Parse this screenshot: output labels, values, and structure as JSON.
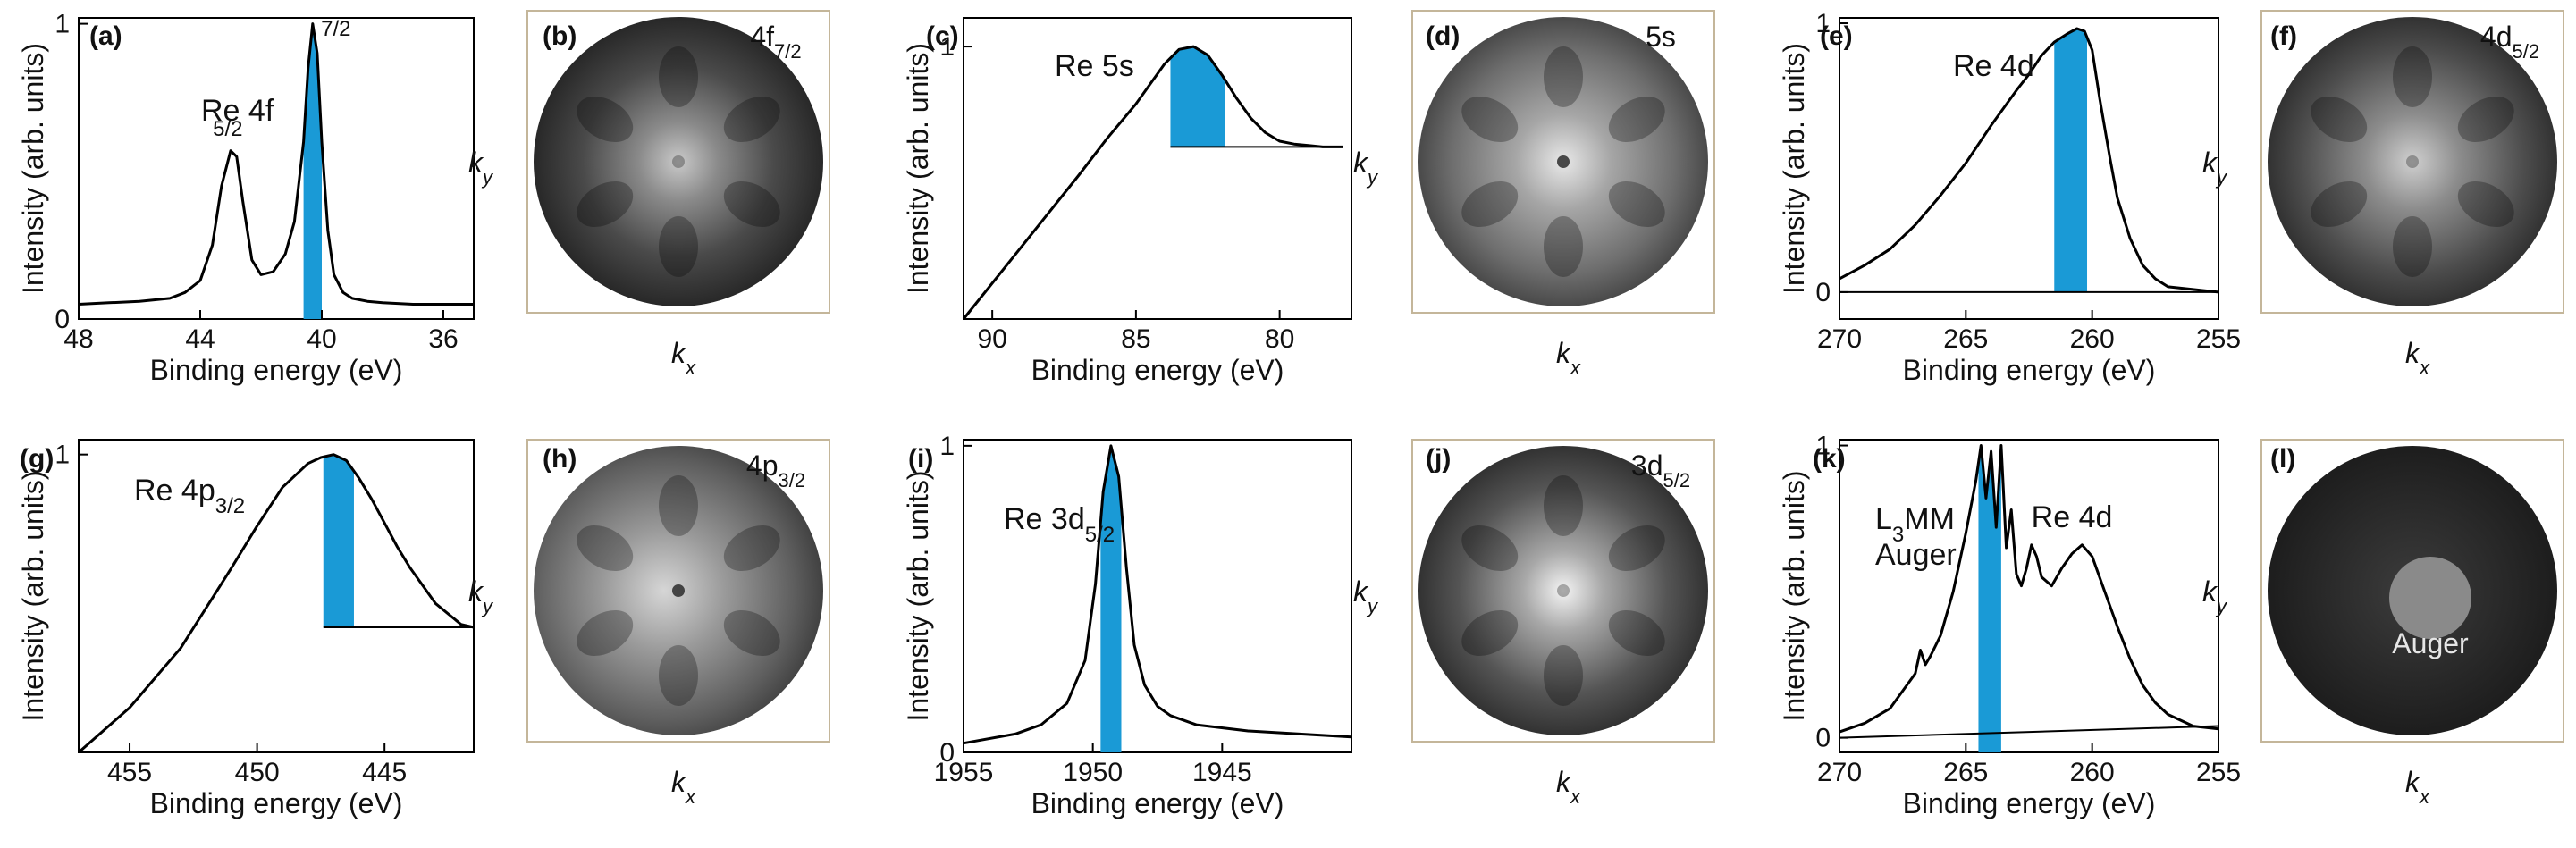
{
  "figure": {
    "common_xlabel": "Binding energy (eV)",
    "common_ylabel": "Intensity (arb. units)",
    "kx_label": "k",
    "kx_sub": "x",
    "ky_label": "k",
    "ky_sub": "y",
    "highlight_color": "#1a9ad6",
    "line_color": "#000000"
  },
  "chart_data": [
    {
      "panel": "(a)",
      "type": "line",
      "annotation": "Re 4f",
      "peak_labels": [
        {
          "text": "5/2",
          "x": 42.8
        },
        {
          "text": "7/2",
          "x": 40.3
        }
      ],
      "xlabel": "Binding energy (eV)",
      "ylabel": "Intensity (arb. units)",
      "xlim": [
        48,
        35
      ],
      "xticks": [
        48,
        44,
        40,
        36
      ],
      "ylim": [
        0,
        1.02
      ],
      "yticks": [
        0,
        1
      ],
      "x": [
        48,
        47,
        46,
        45,
        44.5,
        44,
        43.6,
        43.3,
        43.0,
        42.8,
        42.6,
        42.3,
        42.0,
        41.6,
        41.2,
        40.9,
        40.6,
        40.45,
        40.3,
        40.15,
        40.0,
        39.8,
        39.6,
        39.3,
        39.0,
        38.5,
        38,
        37,
        36,
        35
      ],
      "y": [
        0.05,
        0.055,
        0.06,
        0.07,
        0.09,
        0.13,
        0.25,
        0.45,
        0.57,
        0.55,
        0.4,
        0.2,
        0.15,
        0.16,
        0.22,
        0.33,
        0.6,
        0.85,
        1.0,
        0.9,
        0.6,
        0.3,
        0.15,
        0.09,
        0.07,
        0.06,
        0.055,
        0.05,
        0.05,
        0.05
      ],
      "highlight": [
        40.6,
        40.0
      ]
    },
    {
      "panel": "(c)",
      "type": "line",
      "annotation": "Re 5s",
      "xlabel": "Binding energy (eV)",
      "ylabel": "Intensity (arb. units)",
      "xlim": [
        91,
        77.5
      ],
      "xticks": [
        90,
        85,
        80
      ],
      "ylim": [
        0.05,
        1.1
      ],
      "yticks": [
        1
      ],
      "x": [
        91,
        89,
        87,
        86,
        85,
        84.5,
        84,
        83.5,
        83,
        82.5,
        82,
        81.5,
        81,
        80.5,
        80,
        79.5,
        79,
        78.5,
        78,
        77.8
      ],
      "y": [
        0.05,
        0.3,
        0.55,
        0.68,
        0.8,
        0.87,
        0.94,
        0.99,
        1.0,
        0.97,
        0.9,
        0.82,
        0.75,
        0.7,
        0.67,
        0.66,
        0.655,
        0.65,
        0.65,
        0.65
      ],
      "highlight": [
        83.8,
        81.9
      ],
      "highlight_base": 0.65
    },
    {
      "panel": "(e)",
      "type": "line",
      "annotation": "Re 4d",
      "xlabel": "Binding energy (eV)",
      "ylabel": "Intensity (arb. units)",
      "xlim": [
        270,
        255
      ],
      "xticks": [
        270,
        265,
        260,
        255
      ],
      "ylim": [
        -0.1,
        1.02
      ],
      "yticks": [
        0,
        1
      ],
      "x": [
        270,
        269,
        268,
        267,
        266,
        265,
        264,
        263,
        262.5,
        262,
        261.5,
        261,
        260.6,
        260.3,
        260,
        259.7,
        259.3,
        259,
        258.5,
        258,
        257.5,
        257,
        256,
        255
      ],
      "y": [
        0.05,
        0.1,
        0.16,
        0.25,
        0.36,
        0.48,
        0.62,
        0.75,
        0.81,
        0.88,
        0.93,
        0.96,
        0.98,
        0.97,
        0.9,
        0.72,
        0.5,
        0.35,
        0.2,
        0.1,
        0.05,
        0.02,
        0.01,
        0.0
      ],
      "highlight": [
        261.5,
        260.2
      ],
      "baseline": 0
    },
    {
      "panel": "(g)",
      "type": "line",
      "annotation": "Re 4p",
      "annotation_sub": "3/2",
      "xlabel": "Binding energy (eV)",
      "ylabel": "Intensity (arb. units)",
      "xlim": [
        457,
        441.5
      ],
      "xticks": [
        455,
        450,
        445
      ],
      "ylim": [
        0,
        1.05
      ],
      "yticks": [
        1
      ],
      "x": [
        457,
        455,
        453,
        451,
        450,
        449,
        448,
        447.5,
        447,
        446.5,
        446,
        445.5,
        445,
        444.5,
        444,
        443,
        442,
        441.5
      ],
      "y": [
        0.0,
        0.15,
        0.35,
        0.62,
        0.76,
        0.89,
        0.97,
        0.99,
        1.0,
        0.98,
        0.92,
        0.85,
        0.77,
        0.69,
        0.62,
        0.5,
        0.43,
        0.42
      ],
      "highlight": [
        447.4,
        446.2
      ],
      "highlight_base": 0.42
    },
    {
      "panel": "(i)",
      "type": "line",
      "annotation": "Re 3d",
      "annotation_sub": "5/2",
      "xlabel": "Binding energy (eV)",
      "ylabel": "Intensity (arb. units)",
      "xlim": [
        1955,
        1940
      ],
      "xticks": [
        1955,
        1950,
        1945
      ],
      "ylim": [
        0,
        1.02
      ],
      "yticks": [
        0,
        1
      ],
      "x": [
        1955,
        1953,
        1952,
        1951,
        1950.3,
        1949.9,
        1949.6,
        1949.3,
        1949.0,
        1948.7,
        1948.4,
        1948.0,
        1947.5,
        1947.0,
        1946,
        1944,
        1942,
        1940
      ],
      "y": [
        0.03,
        0.06,
        0.09,
        0.16,
        0.3,
        0.55,
        0.85,
        1.0,
        0.9,
        0.6,
        0.35,
        0.22,
        0.15,
        0.12,
        0.09,
        0.07,
        0.06,
        0.05
      ],
      "highlight": [
        1949.7,
        1948.9
      ]
    },
    {
      "panel": "(k)",
      "type": "line",
      "annotation_lines": [
        {
          "text": "L",
          "sub": "3",
          "rest": "MM"
        },
        {
          "text": "Auger"
        }
      ],
      "annotation2": "Re 4d",
      "xlabel": "Binding energy (eV)",
      "ylabel": "Intensity (arb. units)",
      "xlim": [
        270,
        255
      ],
      "xticks": [
        270,
        265,
        260,
        255
      ],
      "ylim": [
        -0.05,
        1.02
      ],
      "yticks": [
        0,
        1
      ],
      "x": [
        270,
        269,
        268,
        267.5,
        267,
        266.8,
        266.6,
        266.4,
        266,
        265.5,
        265,
        264.6,
        264.4,
        264.2,
        264.0,
        263.8,
        263.6,
        263.4,
        263.2,
        263.0,
        262.8,
        262.6,
        262.4,
        262.2,
        262.0,
        261.6,
        261.2,
        260.8,
        260.4,
        260.0,
        259.5,
        259,
        258.5,
        258,
        257.5,
        257,
        256,
        255
      ],
      "y": [
        0.02,
        0.05,
        0.1,
        0.16,
        0.22,
        0.3,
        0.25,
        0.28,
        0.35,
        0.5,
        0.7,
        0.88,
        1.0,
        0.82,
        0.98,
        0.72,
        1.0,
        0.65,
        0.78,
        0.56,
        0.52,
        0.58,
        0.66,
        0.62,
        0.55,
        0.52,
        0.58,
        0.63,
        0.66,
        0.62,
        0.5,
        0.38,
        0.27,
        0.18,
        0.12,
        0.08,
        0.04,
        0.03
      ],
      "highlight": [
        264.5,
        263.6
      ],
      "baseline_line": [
        [
          270,
          0.0
        ],
        [
          255,
          0.04
        ]
      ]
    }
  ],
  "maps": [
    {
      "panel": "(b)",
      "label": "4f",
      "sub": "7/2"
    },
    {
      "panel": "(d)",
      "label": "5s",
      "sub": ""
    },
    {
      "panel": "(f)",
      "label": "4d",
      "sub": "5/2"
    },
    {
      "panel": "(h)",
      "label": "4p",
      "sub": "3/2"
    },
    {
      "panel": "(j)",
      "label": "3d",
      "sub": "5/2"
    },
    {
      "panel": "(l)",
      "label": "",
      "sub": "",
      "inner_label": "Auger"
    }
  ]
}
